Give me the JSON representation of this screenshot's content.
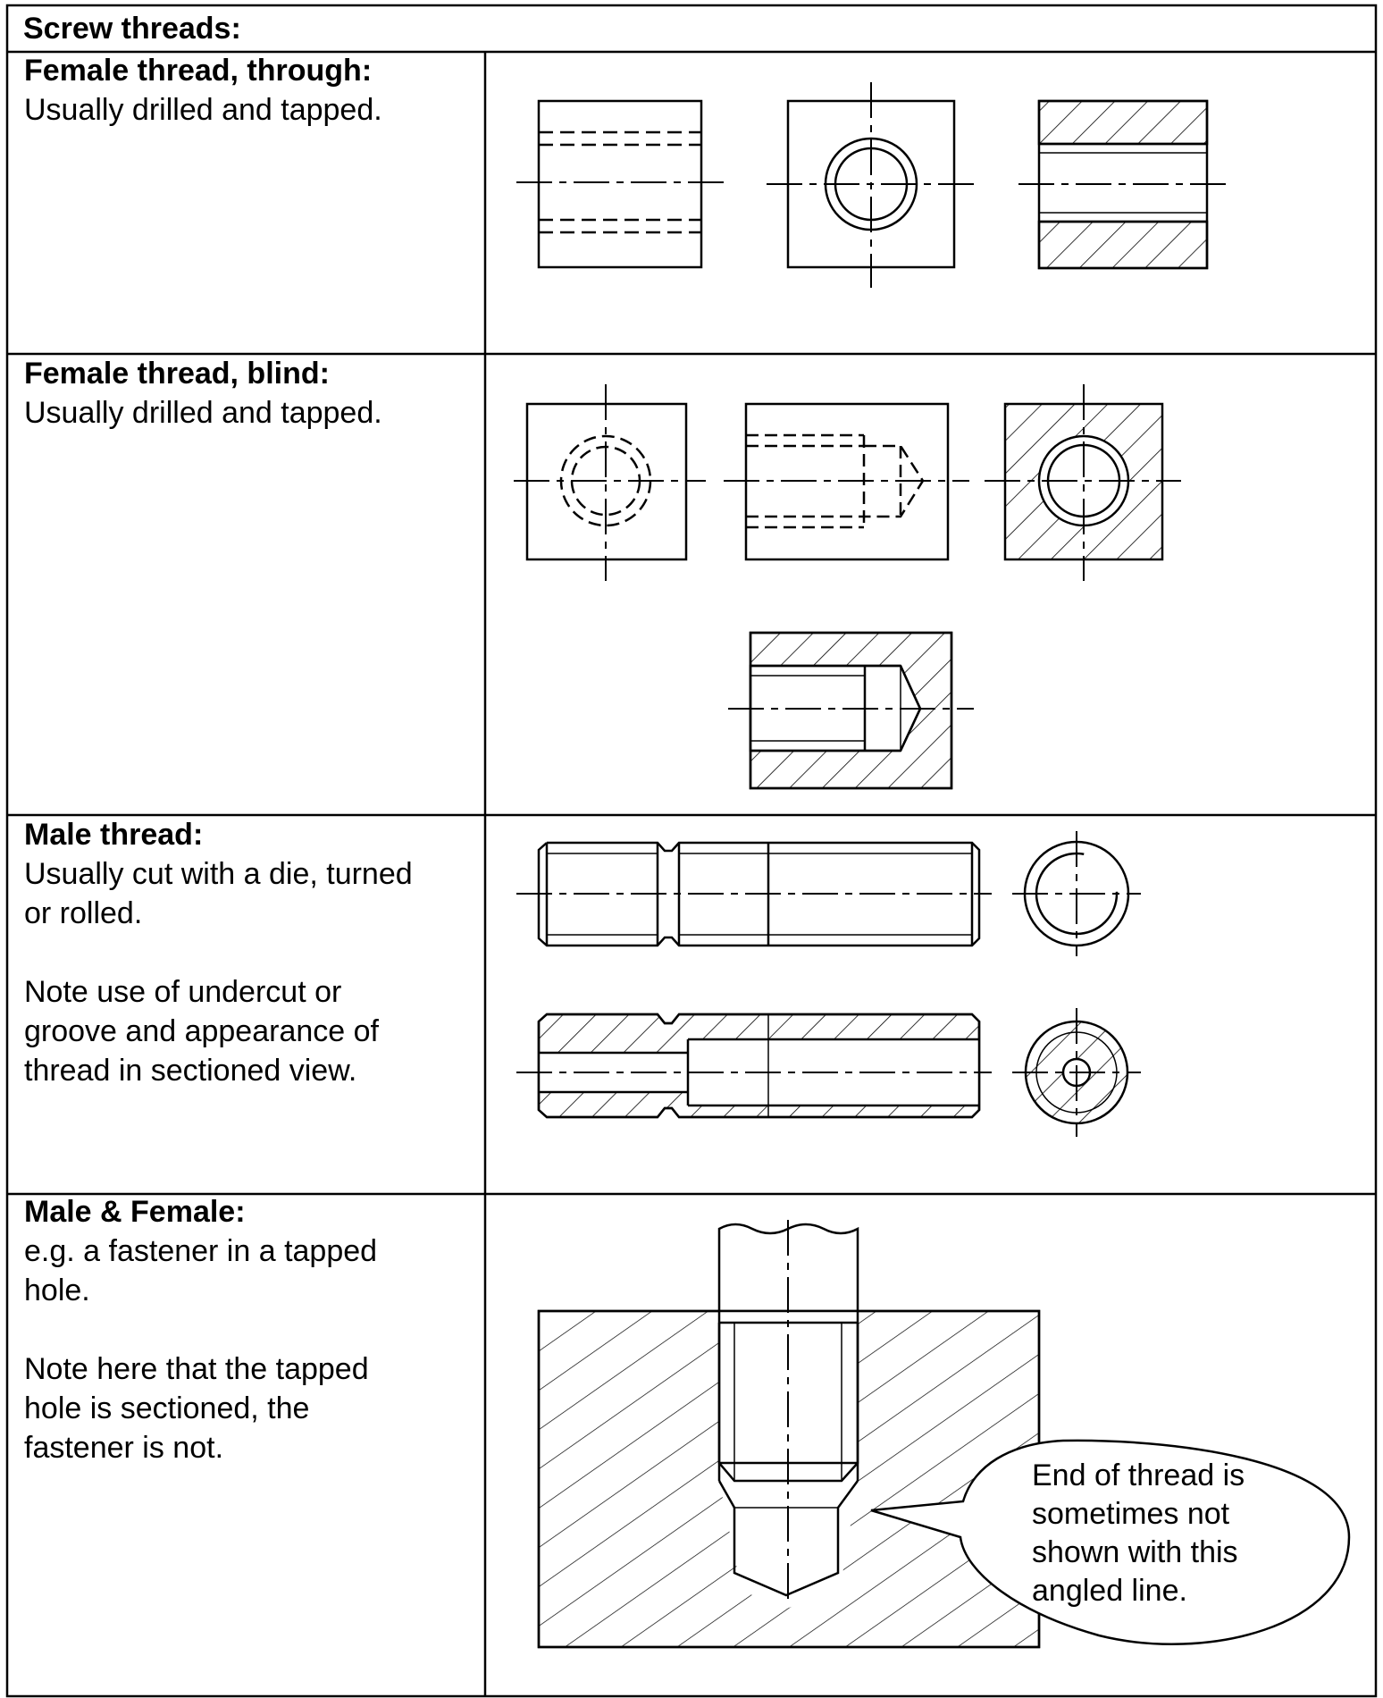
{
  "header": {
    "title": "Screw threads:"
  },
  "rows": [
    {
      "title": "Female thread, through:",
      "lines": [
        "Usually drilled and tapped."
      ]
    },
    {
      "title": "Female thread, blind:",
      "lines": [
        "Usually drilled and tapped."
      ]
    },
    {
      "title": "Male thread:",
      "lines": [
        "Usually cut with a die, turned",
        "or rolled.",
        "",
        "Note use of undercut or",
        "groove and appearance of",
        "thread in sectioned view."
      ]
    },
    {
      "title": "Male & Female:",
      "lines": [
        "e.g. a fastener in a tapped",
        "hole.",
        "",
        "Note here that the tapped",
        "hole is sectioned, the",
        "fastener is not."
      ]
    }
  ],
  "callout": {
    "lines": [
      "End of thread is",
      "sometimes not",
      "shown with this",
      "angled line."
    ]
  }
}
